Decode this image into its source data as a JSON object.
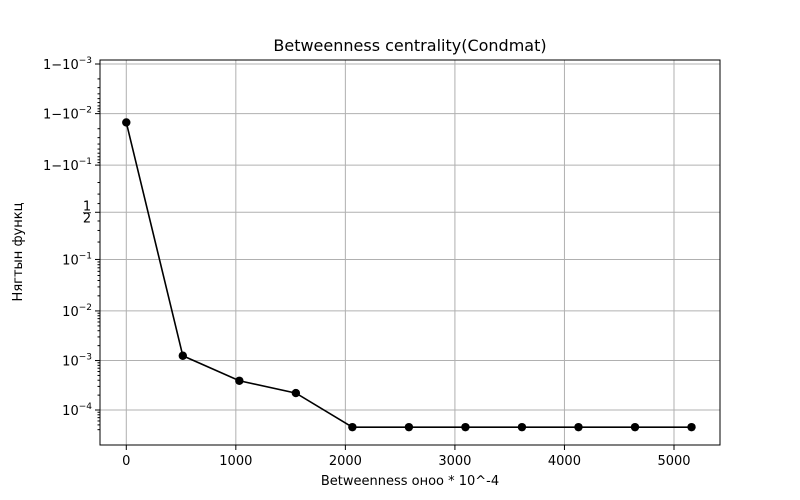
{
  "chart_data": {
    "type": "line",
    "title": "Betweenness centrality(Condmat)",
    "xlabel": "Betweenness оноо * 10^-4",
    "ylabel": "Нягтын функц",
    "yscale": "logit",
    "grid": true,
    "xlim": [
      -240,
      5420
    ],
    "xticks": [
      0,
      1000,
      2000,
      3000,
      4000,
      5000
    ],
    "yticks": [
      {
        "value": 0.0001,
        "label": "10^{-4}"
      },
      {
        "value": 0.001,
        "label": "10^{-3}"
      },
      {
        "value": 0.01,
        "label": "10^{-2}"
      },
      {
        "value": 0.1,
        "label": "10^{-1}"
      },
      {
        "value": 0.5,
        "label": "1/2"
      },
      {
        "value": 0.9,
        "label": "1-10^{-1}"
      },
      {
        "value": 0.99,
        "label": "1-10^{-2}"
      },
      {
        "value": 0.999,
        "label": "1-10^{-3}"
      }
    ],
    "x": [
      0,
      516,
      1032,
      1548,
      2064,
      2580,
      3096,
      3612,
      4128,
      4644,
      5160
    ],
    "y": [
      0.985,
      0.00125,
      0.00039,
      0.00022,
      4.5e-05,
      4.5e-05,
      4.5e-05,
      4.5e-05,
      4.5e-05,
      4.5e-05,
      4.5e-05
    ],
    "color": "#000000"
  }
}
